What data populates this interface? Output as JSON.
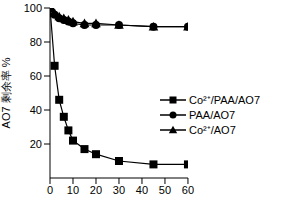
{
  "chart_data": {
    "type": "line",
    "y_label": "AO7 剩余率 %",
    "x": [
      0,
      2,
      4,
      6,
      8,
      10,
      15,
      20,
      30,
      45,
      60
    ],
    "series": [
      {
        "name": "Co²⁺/PAA/AO7",
        "color": "#000000",
        "marker": "square",
        "values": [
          100,
          66,
          46,
          36,
          28,
          22,
          17,
          14,
          10,
          8,
          8
        ]
      },
      {
        "name": "PAA/AO7",
        "color": "#000000",
        "marker": "circle",
        "values": [
          100,
          96,
          94,
          93,
          92,
          91,
          90,
          90,
          90,
          89,
          89
        ]
      },
      {
        "name": "Co²⁺/AO7",
        "color": "#000000",
        "marker": "triangle",
        "values": [
          100,
          97,
          95,
          94,
          93,
          92,
          91,
          91,
          90,
          89,
          89
        ]
      }
    ],
    "xlim": [
      0,
      60
    ],
    "xticks": [
      0,
      10,
      20,
      30,
      40,
      50,
      60
    ],
    "ylim": [
      0,
      100
    ],
    "yticks": [
      20,
      40,
      60,
      80,
      100
    ],
    "legend": "right",
    "grid": false
  }
}
